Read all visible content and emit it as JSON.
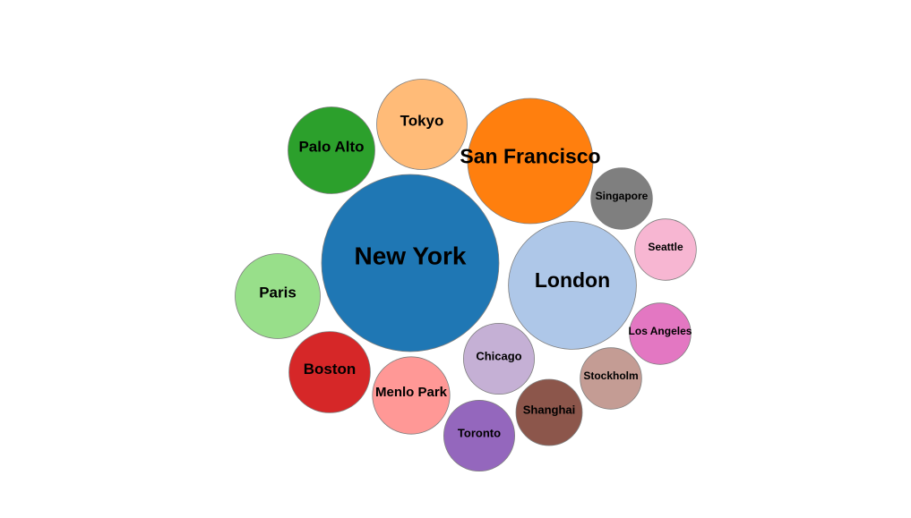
{
  "chart_data": {
    "type": "bubble",
    "title": "",
    "legend": "none",
    "grid": false,
    "series": [
      {
        "label": "New York",
        "value": 100,
        "color": "#1f77b4"
      },
      {
        "label": "San Francisco",
        "value": 50,
        "color": "#ff7f0e"
      },
      {
        "label": "London",
        "value": 52,
        "color": "#aec7e8"
      },
      {
        "label": "Tokyo",
        "value": 26,
        "color": "#ffbb78"
      },
      {
        "label": "Palo Alto",
        "value": 24,
        "color": "#2ca02c"
      },
      {
        "label": "Paris",
        "value": 23,
        "color": "#98df8a"
      },
      {
        "label": "Boston",
        "value": 21,
        "color": "#d62728"
      },
      {
        "label": "Menlo Park",
        "value": 19,
        "color": "#ff9896"
      },
      {
        "label": "Toronto",
        "value": 16,
        "color": "#9467bd"
      },
      {
        "label": "Chicago",
        "value": 16,
        "color": "#c5b0d5"
      },
      {
        "label": "Shanghai",
        "value": 14,
        "color": "#8c564b"
      },
      {
        "label": "Stockholm",
        "value": 12,
        "color": "#c49c94"
      },
      {
        "label": "Los Angeles",
        "value": 12,
        "color": "#e377c2"
      },
      {
        "label": "Seattle",
        "value": 12,
        "color": "#f7b6d2"
      },
      {
        "label": "Singapore",
        "value": 12,
        "color": "#7f7f7f"
      }
    ]
  }
}
